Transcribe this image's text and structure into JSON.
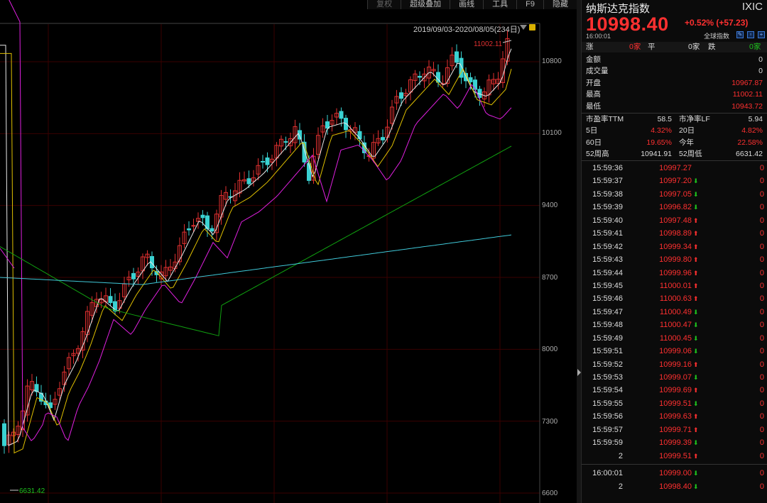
{
  "toolbar": {
    "buttons": [
      "复权",
      "超级叠加",
      "画线",
      "工具",
      "F9",
      "隐藏"
    ]
  },
  "chart": {
    "range_label": "2019/09/03-2020/08/05(234日)",
    "high_annotation": "11002.11",
    "low_annotation": "6631.42",
    "colors": {
      "up": "#e03030",
      "down": "#3ad2d2",
      "ma5": "#e8e8e8",
      "ma10": "#e0c000",
      "ma20": "#e020e0",
      "ma60": "#10a010",
      "ma120": "#40c8d8"
    }
  },
  "chart_data": {
    "type": "candlestick",
    "y_ticks": [
      10800,
      10100,
      9400,
      8700,
      8000,
      7300,
      6600
    ],
    "ylim": [
      6530,
      11050
    ],
    "x_range": [
      "2019/09/03",
      "2020/08/05"
    ],
    "annotations": {
      "high": 11002.11,
      "low": 6631.42
    }
  },
  "panel": {
    "name": "纳斯达克指数",
    "code": "IXIC",
    "price": "10998.40",
    "change": "+0.52% (+57.23)",
    "time": "16:00:01",
    "global_label": "全球指数",
    "stat_bar": {
      "up_label": "涨",
      "up_val": "0家",
      "flat_label": "平",
      "flat_val": "0家",
      "down_label": "跌",
      "down_val": "0家"
    },
    "rows1": [
      {
        "label": "金额",
        "value": "0"
      },
      {
        "label": "成交量",
        "value": "0"
      },
      {
        "label": "开盘",
        "value": "10967.87"
      },
      {
        "label": "最高",
        "value": "11002.11"
      },
      {
        "label": "最低",
        "value": "10943.72"
      }
    ],
    "rows2": [
      {
        "l1": "市盈率TTM",
        "v1": "58.5",
        "l2": "市净率LF",
        "v2": "5.94"
      },
      {
        "l1": "5日",
        "v1": "4.32%",
        "l2": "20日",
        "v2": "4.82%"
      },
      {
        "l1": "60日",
        "v1": "19.65%",
        "l2": "今年",
        "v2": "22.58%"
      },
      {
        "l1": "52周高",
        "v1": "10941.91",
        "l2": "52周低",
        "v2": "6631.42"
      }
    ],
    "ticks": [
      {
        "time": "15:59:36",
        "price": "10997.27",
        "dir": "",
        "vol": "0"
      },
      {
        "time": "15:59:37",
        "price": "10997.20",
        "dir": "down",
        "vol": "0"
      },
      {
        "time": "15:59:38",
        "price": "10997.05",
        "dir": "down",
        "vol": "0"
      },
      {
        "time": "15:59:39",
        "price": "10996.82",
        "dir": "down",
        "vol": "0"
      },
      {
        "time": "15:59:40",
        "price": "10997.48",
        "dir": "up",
        "vol": "0"
      },
      {
        "time": "15:59:41",
        "price": "10998.89",
        "dir": "up",
        "vol": "0"
      },
      {
        "time": "15:59:42",
        "price": "10999.34",
        "dir": "up",
        "vol": "0"
      },
      {
        "time": "15:59:43",
        "price": "10999.80",
        "dir": "up",
        "vol": "0"
      },
      {
        "time": "15:59:44",
        "price": "10999.96",
        "dir": "up",
        "vol": "0"
      },
      {
        "time": "15:59:45",
        "price": "11000.01",
        "dir": "up",
        "vol": "0"
      },
      {
        "time": "15:59:46",
        "price": "11000.63",
        "dir": "up",
        "vol": "0"
      },
      {
        "time": "15:59:47",
        "price": "11000.49",
        "dir": "down",
        "vol": "0"
      },
      {
        "time": "15:59:48",
        "price": "11000.47",
        "dir": "down",
        "vol": "0"
      },
      {
        "time": "15:59:49",
        "price": "11000.45",
        "dir": "down",
        "vol": "0"
      },
      {
        "time": "15:59:51",
        "price": "10999.06",
        "dir": "down",
        "vol": "0"
      },
      {
        "time": "15:59:52",
        "price": "10999.16",
        "dir": "up",
        "vol": "0"
      },
      {
        "time": "15:59:53",
        "price": "10999.07",
        "dir": "down",
        "vol": "0"
      },
      {
        "time": "15:59:54",
        "price": "10999.69",
        "dir": "up",
        "vol": "0"
      },
      {
        "time": "15:59:55",
        "price": "10999.51",
        "dir": "down",
        "vol": "0"
      },
      {
        "time": "15:59:56",
        "price": "10999.63",
        "dir": "up",
        "vol": "0"
      },
      {
        "time": "15:59:57",
        "price": "10999.71",
        "dir": "up",
        "vol": "0"
      },
      {
        "time": "15:59:59",
        "price": "10999.39",
        "dir": "down",
        "vol": "0"
      },
      {
        "time": "2",
        "price": "10999.51",
        "dir": "up",
        "vol": "0"
      }
    ],
    "close_ticks": [
      {
        "time": "16:00:01",
        "price": "10999.00",
        "dir": "down",
        "vol": "0"
      },
      {
        "time": "2",
        "price": "10998.40",
        "dir": "down",
        "vol": "0"
      }
    ]
  }
}
